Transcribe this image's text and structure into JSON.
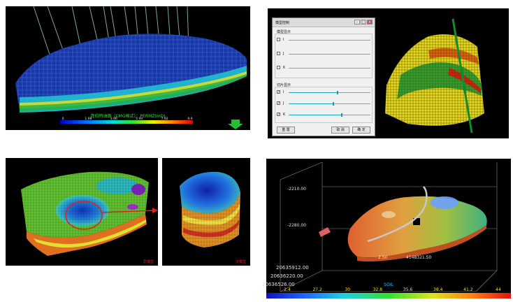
{
  "panel1": {
    "colorbar_title": "庞伯特油田（CMG格式）：PERMZ(mD)",
    "colorbar_ticks": [
      "0",
      "1.98",
      "3.96",
      "5.94",
      "7.92",
      "9.9"
    ]
  },
  "panel2": {
    "dialog": {
      "title": "模型控制",
      "section_display": "模型显示",
      "section_slice": "切片显示",
      "display_axes": [
        {
          "label": "I",
          "checked": false
        },
        {
          "label": "J",
          "checked": false
        },
        {
          "label": "K",
          "checked": false
        }
      ],
      "slice_axes": [
        {
          "label": "I",
          "checked": true,
          "value": 0.6
        },
        {
          "label": "J",
          "checked": true,
          "value": 0.55
        },
        {
          "label": "K",
          "checked": true,
          "value": 0.65
        }
      ],
      "reset_label": "重 置",
      "cancel_label": "取 消",
      "confirm_label": "确 定"
    }
  },
  "panel3": {
    "left_label": "原模型",
    "right_label": "子模型"
  },
  "panel4": {
    "z_ticks": [
      "-2210.00",
      "-2280.00"
    ],
    "y_ticks": [
      "20635912.00",
      "20636220.00",
      "20636526.00"
    ],
    "x_ticks": [
      "2.50",
      "4148321.50"
    ],
    "colorbar_label": "SOIL",
    "colorbar_ticks": [
      "2.4",
      "27.2",
      "30",
      "32.8",
      "35.6",
      "38.4",
      "41.2",
      "44"
    ]
  },
  "colors": {
    "panel_bg": "#000000",
    "accent_slider": "#1ca4b4",
    "arrow_green": "#22c02a",
    "red_annotation": "#e02020"
  }
}
